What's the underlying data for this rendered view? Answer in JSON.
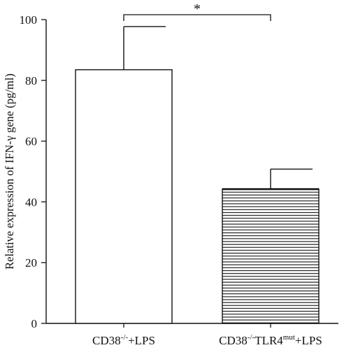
{
  "chart_data": {
    "type": "bar",
    "title": "",
    "xlabel": "",
    "ylabel": "Relative expression of IFN-γ gene (pg/ml)",
    "ylim": [
      0,
      100
    ],
    "yticks": [
      0,
      20,
      40,
      60,
      80,
      100
    ],
    "categories": [
      {
        "base": "CD38",
        "sup1": "-/-",
        "mid": "+LPS",
        "sup2": "",
        "tail": ""
      },
      {
        "base": "CD38",
        "sup1": "-/-",
        "mid": "TLR4",
        "sup2": "mut",
        "tail": "+LPS"
      }
    ],
    "values": [
      83.5,
      44.2
    ],
    "errors": [
      14.2,
      6.6
    ],
    "fills": [
      "white",
      "horizontal-lines"
    ],
    "significance": {
      "between": [
        0,
        1
      ],
      "label": "*"
    },
    "grid": false,
    "legend": "none"
  },
  "colors": {
    "axis": "#111111",
    "bar_edge": "#111111",
    "bar_fill": "#ffffff",
    "hatch": "#111111"
  }
}
